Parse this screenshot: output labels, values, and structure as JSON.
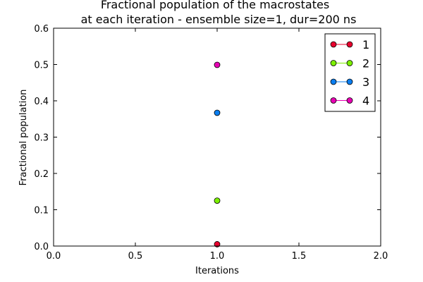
{
  "chart_data": {
    "type": "scatter",
    "title": "Fractional population of the macrostates\nat each iteration - ensemble size=1, dur=200 ns",
    "xlabel": "Iterations",
    "ylabel": "Fractional population",
    "xlim": [
      0.0,
      2.0
    ],
    "ylim": [
      0.0,
      0.6
    ],
    "xticks": [
      0.0,
      0.5,
      1.0,
      1.5,
      2.0
    ],
    "xtick_labels": [
      "0.0",
      "0.5",
      "1.0",
      "1.5",
      "2.0"
    ],
    "yticks": [
      0.0,
      0.1,
      0.2,
      0.3,
      0.4,
      0.5,
      0.6
    ],
    "ytick_labels": [
      "0.0",
      "0.1",
      "0.2",
      "0.3",
      "0.4",
      "0.5",
      "0.6"
    ],
    "grid": false,
    "legend_position": "top-right",
    "series": [
      {
        "name": "1",
        "color": "#e8002e",
        "x": [
          1.0
        ],
        "y": [
          0.005
        ]
      },
      {
        "name": "2",
        "color": "#7cf000",
        "x": [
          1.0
        ],
        "y": [
          0.125
        ]
      },
      {
        "name": "3",
        "color": "#0a7ef0",
        "x": [
          1.0
        ],
        "y": [
          0.367
        ]
      },
      {
        "name": "4",
        "color": "#e800b4",
        "x": [
          1.0
        ],
        "y": [
          0.499
        ]
      }
    ]
  }
}
